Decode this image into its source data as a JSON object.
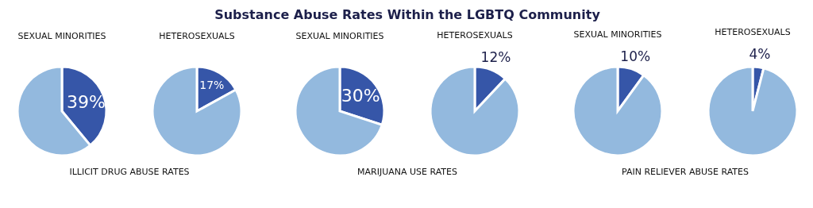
{
  "chart_data": [
    {
      "type": "pie",
      "title": "SEXUAL MINORITIES",
      "categories": [
        null,
        null
      ],
      "values": [
        39,
        61
      ],
      "colors": [
        "#3656a8",
        "#93b9de"
      ],
      "value_labels": [
        "39%",
        null
      ],
      "annotations": [
        "Substance Abuse Rates Within the LGBTQ Community",
        "ILLICIT DRUG ABUSE RATES"
      ]
    },
    {
      "type": "pie",
      "title": "HETEROSEXUALS",
      "categories": [
        null,
        null
      ],
      "values": [
        17,
        83
      ],
      "colors": [
        "#3656a8",
        "#93b9de"
      ],
      "value_labels": [
        "17%",
        null
      ]
    },
    {
      "type": "pie",
      "title": "SEXUAL MINORITIES",
      "categories": [
        null,
        null
      ],
      "values": [
        30,
        70
      ],
      "colors": [
        "#3656a8",
        "#93b9de"
      ],
      "value_labels": [
        "30%",
        null
      ],
      "annotations": [
        "MARIJUANA USE RATES"
      ]
    },
    {
      "type": "pie",
      "title": "HETEROSEXUALS",
      "categories": [
        null,
        null
      ],
      "values": [
        12,
        88
      ],
      "colors": [
        "#3656a8",
        "#93b9de"
      ],
      "value_labels": [
        "12%",
        null
      ]
    },
    {
      "type": "pie",
      "title": "SEXUAL MINORITIES",
      "categories": [
        null,
        null
      ],
      "values": [
        10,
        90
      ],
      "colors": [
        "#3656a8",
        "#93b9de"
      ],
      "value_labels": [
        "10%",
        null
      ],
      "annotations": [
        "PAIN RELIEVER ABUSE RATES"
      ]
    },
    {
      "type": "pie",
      "title": "HETEROSEXUALS",
      "categories": [
        null,
        null
      ],
      "values": [
        4,
        96
      ],
      "colors": [
        "#3656a8",
        "#93b9de"
      ],
      "value_labels": [
        "4%",
        null
      ]
    }
  ]
}
